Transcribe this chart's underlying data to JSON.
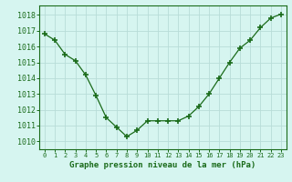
{
  "x": [
    0,
    1,
    2,
    3,
    4,
    5,
    6,
    7,
    8,
    9,
    10,
    11,
    12,
    13,
    14,
    15,
    16,
    17,
    18,
    19,
    20,
    21,
    22,
    23
  ],
  "y": [
    1016.8,
    1016.4,
    1015.5,
    1015.1,
    1014.2,
    1012.9,
    1011.5,
    1010.9,
    1010.3,
    1010.7,
    1011.3,
    1011.3,
    1011.3,
    1011.3,
    1011.6,
    1012.2,
    1013.0,
    1014.0,
    1015.0,
    1015.9,
    1016.4,
    1017.2,
    1017.8,
    1018.05
  ],
  "xlim": [
    -0.5,
    23.5
  ],
  "ylim": [
    1009.5,
    1018.6
  ],
  "yticks": [
    1010,
    1011,
    1012,
    1013,
    1014,
    1015,
    1016,
    1017,
    1018
  ],
  "xticks": [
    0,
    1,
    2,
    3,
    4,
    5,
    6,
    7,
    8,
    9,
    10,
    11,
    12,
    13,
    14,
    15,
    16,
    17,
    18,
    19,
    20,
    21,
    22,
    23
  ],
  "xlabel": "Graphe pression niveau de la mer (hPa)",
  "line_color": "#1a6b1a",
  "marker": "+",
  "marker_size": 4,
  "marker_lw": 1.2,
  "bg_color": "#d6f5f0",
  "grid_color": "#b8dcd8",
  "tick_color": "#1a6b1a",
  "label_color": "#1a6b1a",
  "xlabel_fontsize": 6.5,
  "ytick_fontsize": 6.0,
  "xtick_fontsize": 5.0,
  "linewidth": 0.9
}
